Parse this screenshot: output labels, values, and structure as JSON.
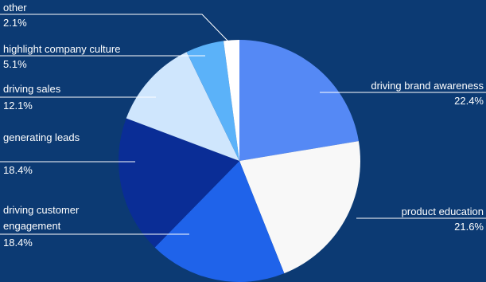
{
  "chart_data": {
    "type": "pie",
    "slices": [
      {
        "name": "driving brand awareness",
        "value": 22.4,
        "label": "22.4%",
        "color": "#5589f5"
      },
      {
        "name": "product education",
        "value": 21.6,
        "label": "21.6%",
        "color": "#f8f8f8"
      },
      {
        "name": "driving customer engagement",
        "value": 18.4,
        "label": "18.4%",
        "color": "#1f63ea"
      },
      {
        "name": "generating leads",
        "value": 18.4,
        "label": "18.4%",
        "color": "#0a2d96"
      },
      {
        "name": "driving sales",
        "value": 12.1,
        "label": "12.1%",
        "color": "#cfe6fd"
      },
      {
        "name": "highlight company culture",
        "value": 5.1,
        "label": "5.1%",
        "color": "#5bb2f9"
      },
      {
        "name": "other",
        "value": 2.1,
        "label": "2.1%",
        "color": "#ffffff"
      }
    ]
  },
  "colors": {
    "background": "#0c3a73",
    "text": "#ffffff"
  }
}
